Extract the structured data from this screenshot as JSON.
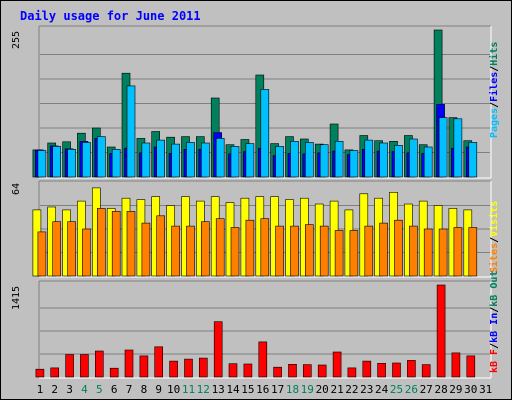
{
  "title": "Daily usage for June 2011",
  "colors": {
    "hits": "#00805c",
    "files": "#0000ff",
    "pages": "#00c0ff",
    "visits": "#ffff00",
    "sites": "#ff8000",
    "kbf": "#ff0000",
    "kbin": "#0000ff",
    "kbout": "#00805c",
    "separator": "#000000",
    "weekend_day": "#00805c",
    "weekday_day": "#000000",
    "title": "#0000ff"
  },
  "chart_data": [
    {
      "type": "bar",
      "name": "hits-files-pages",
      "y_max_label": "255",
      "ylim": [
        0,
        255
      ],
      "legend": [
        {
          "label": "Pages",
          "color_key": "pages"
        },
        {
          "label": "/",
          "color_key": "separator"
        },
        {
          "label": "Files",
          "color_key": "files"
        },
        {
          "label": "/",
          "color_key": "separator"
        },
        {
          "label": "Hits",
          "color_key": "hits"
        }
      ],
      "series": [
        {
          "name": "Hits",
          "values": [
            47,
            59,
            61,
            76,
            85,
            52,
            180,
            67,
            79,
            69,
            70,
            70,
            137,
            56,
            65,
            177,
            58,
            70,
            66,
            57,
            92,
            47,
            72,
            63,
            62,
            72,
            56,
            255,
            103,
            63
          ]
        },
        {
          "name": "Files",
          "values": [
            47,
            54,
            49,
            62,
            67,
            41,
            50,
            42,
            52,
            41,
            48,
            48,
            77,
            40,
            44,
            50,
            37,
            41,
            40,
            42,
            45,
            39,
            48,
            45,
            44,
            42,
            41,
            126,
            50,
            52
          ]
        },
        {
          "name": "Pages",
          "values": [
            46,
            53,
            48,
            60,
            70,
            48,
            158,
            59,
            64,
            57,
            60,
            59,
            67,
            53,
            58,
            152,
            53,
            62,
            60,
            56,
            62,
            46,
            64,
            59,
            55,
            66,
            52,
            103,
            101,
            60
          ]
        }
      ]
    },
    {
      "type": "bar",
      "name": "visits-sites",
      "y_max_label": "64",
      "ylim": [
        0,
        64
      ],
      "legend": [
        {
          "label": "Sites",
          "color_key": "sites"
        },
        {
          "label": "/",
          "color_key": "separator"
        },
        {
          "label": "Visits",
          "color_key": "visits"
        }
      ],
      "series": [
        {
          "name": "Visits",
          "values": [
            45,
            47,
            45,
            51,
            60,
            46,
            53,
            52,
            54,
            48,
            54,
            51,
            54,
            50,
            53,
            54,
            54,
            52,
            53,
            49,
            51,
            45,
            56,
            53,
            57,
            49,
            51,
            48,
            46,
            45
          ]
        },
        {
          "name": "Sites",
          "values": [
            30,
            37,
            37,
            32,
            46,
            44,
            44,
            36,
            41,
            34,
            34,
            37,
            39,
            33,
            38,
            39,
            34,
            34,
            35,
            34,
            31,
            31,
            34,
            36,
            38,
            34,
            32,
            32,
            33,
            33
          ]
        }
      ]
    },
    {
      "type": "bar",
      "name": "kbytes",
      "y_max_label": "1415",
      "ylim": [
        0,
        1415
      ],
      "legend": [
        {
          "label": "kB F",
          "color_key": "kbf"
        },
        {
          "label": "/",
          "color_key": "separator"
        },
        {
          "label": "kB In",
          "color_key": "kbin"
        },
        {
          "label": "/",
          "color_key": "separator"
        },
        {
          "label": "kB Out",
          "color_key": "kbout"
        }
      ],
      "series": [
        {
          "name": "kB F",
          "values": [
            120,
            140,
            345,
            345,
            400,
            135,
            415,
            325,
            465,
            245,
            275,
            290,
            850,
            205,
            200,
            540,
            150,
            195,
            190,
            185,
            385,
            140,
            245,
            210,
            215,
            255,
            190,
            1415,
            370,
            325
          ]
        }
      ]
    }
  ],
  "days": {
    "labels": [
      "1",
      "2",
      "3",
      "4",
      "5",
      "6",
      "7",
      "8",
      "9",
      "10",
      "11",
      "12",
      "13",
      "14",
      "15",
      "16",
      "17",
      "18",
      "19",
      "20",
      "21",
      "22",
      "23",
      "24",
      "25",
      "26",
      "27",
      "28",
      "29",
      "30",
      "31"
    ],
    "weekend": [
      4,
      5,
      11,
      12,
      18,
      19,
      25,
      26
    ]
  }
}
